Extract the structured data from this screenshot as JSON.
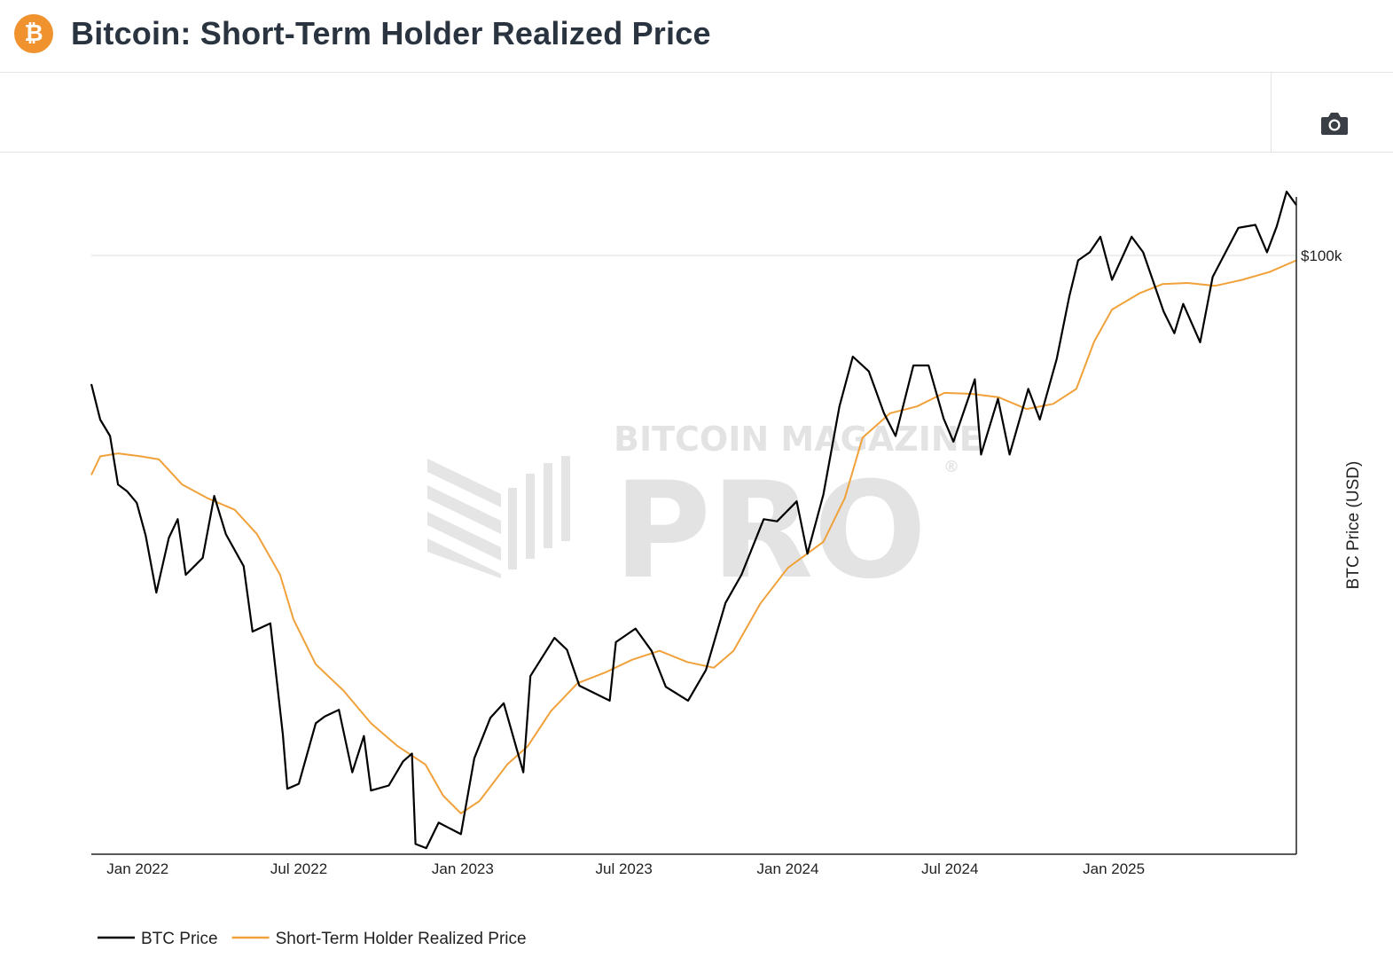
{
  "header": {
    "title": "Bitcoin: Short-Term Holder Realized Price",
    "logo_glyph": "₿",
    "logo_color": "#f0922e"
  },
  "toolbar": {
    "icons": [
      "camera-icon"
    ]
  },
  "watermark": {
    "line1": "BITCOIN MAGAZINE",
    "line2": "PRO",
    "mark": "®"
  },
  "chart_data": {
    "type": "line",
    "xlabel": "",
    "ylabel": "BTC Price (USD)",
    "y_scale": "log",
    "ylim": [
      15500,
      120000
    ],
    "xlim": [
      "2021-11-10",
      "2025-07-25"
    ],
    "x_ticks": [
      {
        "label": "Jan 2022",
        "date": "2022-01-01"
      },
      {
        "label": "Jul 2022",
        "date": "2022-07-01"
      },
      {
        "label": "Jan 2023",
        "date": "2023-01-01"
      },
      {
        "label": "Jul 2023",
        "date": "2023-07-01"
      },
      {
        "label": "Jan 2024",
        "date": "2024-01-01"
      },
      {
        "label": "Jul 2024",
        "date": "2024-07-01"
      },
      {
        "label": "Jan 2025",
        "date": "2025-01-01"
      }
    ],
    "y_ticks": [
      {
        "label": "$100k",
        "value": 100000
      }
    ],
    "grid": "horizontal",
    "legend_position": "bottom-left",
    "series": [
      {
        "name": "BTC Price",
        "color": "#000000",
        "points": [
          [
            "2021-11-10",
            67000
          ],
          [
            "2021-11-20",
            60000
          ],
          [
            "2021-12-01",
            57000
          ],
          [
            "2021-12-10",
            49000
          ],
          [
            "2021-12-20",
            48000
          ],
          [
            "2021-12-31",
            46300
          ],
          [
            "2022-01-10",
            41800
          ],
          [
            "2022-01-22",
            35000
          ],
          [
            "2022-02-05",
            41500
          ],
          [
            "2022-02-15",
            44000
          ],
          [
            "2022-02-24",
            37000
          ],
          [
            "2022-03-15",
            39000
          ],
          [
            "2022-03-28",
            47300
          ],
          [
            "2022-04-10",
            42000
          ],
          [
            "2022-04-30",
            38000
          ],
          [
            "2022-05-10",
            31000
          ],
          [
            "2022-05-30",
            31800
          ],
          [
            "2022-06-13",
            22500
          ],
          [
            "2022-06-18",
            19000
          ],
          [
            "2022-07-01",
            19300
          ],
          [
            "2022-07-20",
            23300
          ],
          [
            "2022-07-30",
            23800
          ],
          [
            "2022-08-15",
            24300
          ],
          [
            "2022-08-30",
            20000
          ],
          [
            "2022-09-12",
            22400
          ],
          [
            "2022-09-20",
            18900
          ],
          [
            "2022-10-10",
            19200
          ],
          [
            "2022-10-26",
            20700
          ],
          [
            "2022-11-05",
            21200
          ],
          [
            "2022-11-09",
            16000
          ],
          [
            "2022-11-21",
            15800
          ],
          [
            "2022-12-05",
            17100
          ],
          [
            "2022-12-30",
            16500
          ],
          [
            "2023-01-14",
            20900
          ],
          [
            "2023-02-01",
            23700
          ],
          [
            "2023-02-16",
            24800
          ],
          [
            "2023-03-10",
            20000
          ],
          [
            "2023-03-18",
            27000
          ],
          [
            "2023-04-14",
            30400
          ],
          [
            "2023-04-28",
            29300
          ],
          [
            "2023-05-12",
            26200
          ],
          [
            "2023-06-15",
            25000
          ],
          [
            "2023-06-22",
            30000
          ],
          [
            "2023-07-14",
            31300
          ],
          [
            "2023-08-01",
            29200
          ],
          [
            "2023-08-17",
            26100
          ],
          [
            "2023-09-11",
            25000
          ],
          [
            "2023-10-01",
            27500
          ],
          [
            "2023-10-23",
            33900
          ],
          [
            "2023-11-10",
            37000
          ],
          [
            "2023-12-05",
            44000
          ],
          [
            "2023-12-20",
            43700
          ],
          [
            "2024-01-11",
            46500
          ],
          [
            "2024-01-23",
            39500
          ],
          [
            "2024-02-10",
            47500
          ],
          [
            "2024-02-28",
            62500
          ],
          [
            "2024-03-14",
            73000
          ],
          [
            "2024-04-01",
            69700
          ],
          [
            "2024-04-18",
            61200
          ],
          [
            "2024-05-01",
            57000
          ],
          [
            "2024-05-21",
            71000
          ],
          [
            "2024-06-07",
            71000
          ],
          [
            "2024-06-24",
            60200
          ],
          [
            "2024-07-05",
            56000
          ],
          [
            "2024-07-29",
            68000
          ],
          [
            "2024-08-05",
            53800
          ],
          [
            "2024-08-24",
            64000
          ],
          [
            "2024-09-06",
            53800
          ],
          [
            "2024-09-27",
            66000
          ],
          [
            "2024-10-10",
            60000
          ],
          [
            "2024-10-29",
            72500
          ],
          [
            "2024-11-12",
            88000
          ],
          [
            "2024-11-22",
            98500
          ],
          [
            "2024-12-05",
            101000
          ],
          [
            "2024-12-17",
            106000
          ],
          [
            "2024-12-30",
            92700
          ],
          [
            "2025-01-21",
            106000
          ],
          [
            "2025-02-03",
            101000
          ],
          [
            "2025-02-26",
            84000
          ],
          [
            "2025-03-10",
            78500
          ],
          [
            "2025-03-20",
            86000
          ],
          [
            "2025-04-08",
            76300
          ],
          [
            "2025-04-22",
            93500
          ],
          [
            "2025-05-21",
            109000
          ],
          [
            "2025-06-09",
            110000
          ],
          [
            "2025-06-22",
            101000
          ],
          [
            "2025-07-03",
            109500
          ],
          [
            "2025-07-14",
            122000
          ],
          [
            "2025-07-25",
            117000
          ]
        ]
      },
      {
        "name": "Short-Term Holder Realized Price",
        "color": "#f0a13a",
        "points": [
          [
            "2021-11-10",
            50500
          ],
          [
            "2021-11-20",
            53500
          ],
          [
            "2021-12-10",
            54000
          ],
          [
            "2022-01-05",
            53500
          ],
          [
            "2022-01-25",
            53000
          ],
          [
            "2022-02-20",
            49000
          ],
          [
            "2022-03-20",
            47000
          ],
          [
            "2022-04-20",
            45300
          ],
          [
            "2022-05-15",
            42000
          ],
          [
            "2022-06-10",
            37000
          ],
          [
            "2022-06-25",
            32200
          ],
          [
            "2022-07-20",
            28000
          ],
          [
            "2022-08-20",
            25800
          ],
          [
            "2022-09-20",
            23300
          ],
          [
            "2022-10-20",
            21700
          ],
          [
            "2022-11-20",
            20500
          ],
          [
            "2022-12-10",
            18600
          ],
          [
            "2022-12-30",
            17600
          ],
          [
            "2023-01-20",
            18300
          ],
          [
            "2023-02-20",
            20500
          ],
          [
            "2023-03-15",
            21700
          ],
          [
            "2023-04-10",
            24200
          ],
          [
            "2023-05-10",
            26400
          ],
          [
            "2023-06-10",
            27300
          ],
          [
            "2023-07-10",
            28400
          ],
          [
            "2023-08-10",
            29200
          ],
          [
            "2023-09-10",
            28200
          ],
          [
            "2023-10-10",
            27700
          ],
          [
            "2023-11-01",
            29200
          ],
          [
            "2023-12-01",
            33800
          ],
          [
            "2024-01-01",
            37800
          ],
          [
            "2024-02-10",
            41000
          ],
          [
            "2024-03-05",
            47000
          ],
          [
            "2024-03-25",
            56700
          ],
          [
            "2024-04-25",
            61200
          ],
          [
            "2024-05-25",
            62500
          ],
          [
            "2024-06-25",
            65200
          ],
          [
            "2024-07-25",
            65000
          ],
          [
            "2024-08-25",
            64300
          ],
          [
            "2024-09-25",
            62000
          ],
          [
            "2024-10-25",
            63000
          ],
          [
            "2024-11-20",
            66000
          ],
          [
            "2024-12-10",
            76500
          ],
          [
            "2024-12-30",
            84500
          ],
          [
            "2025-01-30",
            88900
          ],
          [
            "2025-02-25",
            91500
          ],
          [
            "2025-03-25",
            91800
          ],
          [
            "2025-04-25",
            91000
          ],
          [
            "2025-05-25",
            92700
          ],
          [
            "2025-06-25",
            95000
          ],
          [
            "2025-07-25",
            98500
          ]
        ]
      }
    ]
  }
}
